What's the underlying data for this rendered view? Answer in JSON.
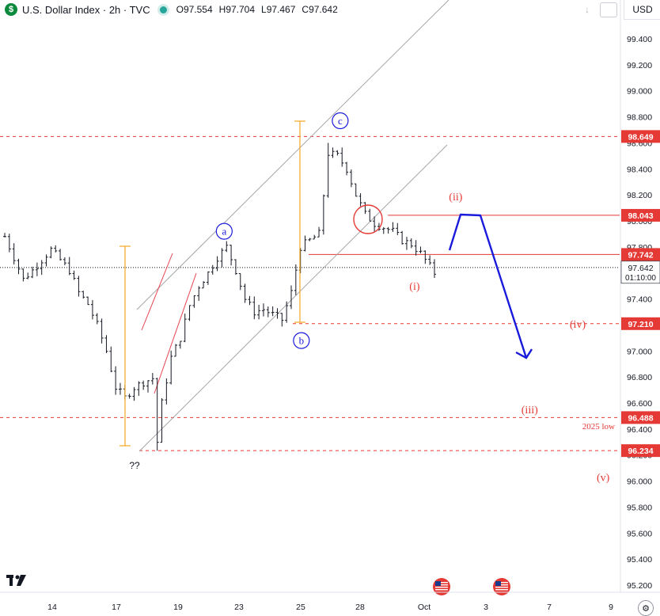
{
  "header": {
    "symbol_icon": "dollar-badge-icon",
    "title": "U.S. Dollar Index · 2h · TVC",
    "open_label": "O",
    "open": "97.554",
    "high_label": "H",
    "high": "97.704",
    "low_label": "L",
    "low": "97.467",
    "close_label": "C",
    "close": "97.642",
    "currency": "USD"
  },
  "chart_data": {
    "type": "candlestick",
    "y_axis": {
      "ticks": [
        95.2,
        95.4,
        95.6,
        95.8,
        96.0,
        96.2,
        96.4,
        96.6,
        96.8,
        97.0,
        97.2,
        97.4,
        97.6,
        97.8,
        98.0,
        98.2,
        98.4,
        98.6,
        98.8,
        99.0,
        99.2,
        99.4
      ],
      "tick_labels": [
        "95.200",
        "95.400",
        "95.600",
        "95.800",
        "96.000",
        "96.200",
        "96.400",
        "96.600",
        "96.800",
        "97.000",
        "97.200",
        "97.400",
        "97.600",
        "97.800",
        "98.000",
        "98.200",
        "98.400",
        "98.600",
        "98.800",
        "99.000",
        "99.200",
        "99.400"
      ],
      "range": [
        95.12,
        99.6
      ]
    },
    "x_axis": {
      "labels": [
        "14",
        "17",
        "19",
        "23",
        "25",
        "28",
        "Oct",
        "3",
        "7",
        "9"
      ],
      "range": [
        -8,
        100
      ]
    },
    "price_path": [
      [
        0,
        97.88
      ],
      [
        2,
        97.72
      ],
      [
        4,
        97.55
      ],
      [
        6,
        97.62
      ],
      [
        8,
        97.7
      ],
      [
        10,
        97.78
      ],
      [
        12,
        97.7
      ],
      [
        14,
        97.62
      ],
      [
        16,
        97.45
      ],
      [
        18,
        97.36
      ],
      [
        20,
        97.2
      ],
      [
        22,
        97.0
      ],
      [
        24,
        96.72
      ],
      [
        26,
        96.64
      ],
      [
        28,
        96.72
      ],
      [
        30,
        96.76
      ],
      [
        32,
        96.79
      ],
      [
        33,
        96.3
      ],
      [
        34,
        96.6
      ],
      [
        36,
        96.95
      ],
      [
        38,
        97.1
      ],
      [
        40,
        97.35
      ],
      [
        42,
        97.5
      ],
      [
        44,
        97.6
      ],
      [
        46,
        97.72
      ],
      [
        48,
        97.8
      ],
      [
        50,
        97.62
      ],
      [
        52,
        97.4
      ],
      [
        54,
        97.3
      ],
      [
        56,
        97.32
      ],
      [
        58,
        97.28
      ],
      [
        60,
        97.24
      ],
      [
        62,
        97.45
      ],
      [
        64,
        97.8
      ],
      [
        66,
        97.85
      ],
      [
        68,
        97.9
      ],
      [
        69,
        98.2
      ],
      [
        70,
        98.52
      ],
      [
        72,
        98.5
      ],
      [
        74,
        98.4
      ],
      [
        76,
        98.2
      ],
      [
        78,
        98.05
      ],
      [
        80,
        97.98
      ],
      [
        82,
        97.95
      ],
      [
        84,
        97.92
      ],
      [
        86,
        97.85
      ],
      [
        88,
        97.82
      ],
      [
        90,
        97.75
      ],
      [
        92,
        97.65
      ],
      [
        93,
        97.6
      ]
    ],
    "levels": [
      {
        "value": 98.649,
        "label": "98.649",
        "style": "dashed",
        "color": "#e53935"
      },
      {
        "value": 98.043,
        "label": "98.043",
        "style": "solid",
        "color": "#e53935"
      },
      {
        "value": 97.742,
        "label": "97.742",
        "style": "solid",
        "color": "#e53935"
      },
      {
        "value": 97.21,
        "label": "97.210",
        "style": "dashed",
        "color": "#e53935"
      },
      {
        "value": 96.488,
        "label": "96.488",
        "style": "dashed",
        "color": "#e53935"
      },
      {
        "value": 96.234,
        "label": "96.234",
        "style": "dashed",
        "color": "#e53935"
      }
    ],
    "current": {
      "price": "97.642",
      "countdown": "01:10:00",
      "value": 97.642
    },
    "wave_labels_blue": [
      {
        "text": "a",
        "x": 47.5,
        "y": 97.92
      },
      {
        "text": "b",
        "x": 64.2,
        "y": 97.08
      },
      {
        "text": "c",
        "x": 72.6,
        "y": 98.77
      }
    ],
    "wave_labels_red": [
      {
        "text": "(i)",
        "x": 88.7,
        "y": 97.5
      },
      {
        "text": "(ii)",
        "x": 97.6,
        "y": 98.19
      },
      {
        "text": "(iii)",
        "x": 113.6,
        "y": 96.55
      },
      {
        "text": "(iv)",
        "x": 124.0,
        "y": 97.21
      },
      {
        "text": "(v)",
        "x": 129.5,
        "y": 96.03
      }
    ],
    "annotations": {
      "unknown_marker": "??",
      "low_note": "2025 low"
    },
    "colors": {
      "levels": "#e53935",
      "projection": "#1a1adb",
      "channel": "#a6a6a6",
      "measure": "#f5a623",
      "waves": "#1a1adb",
      "trend": "#e8434f"
    }
  },
  "toolbar": {
    "logo": "tradingview-logo-icon",
    "settings_icon": "gear-icon"
  }
}
